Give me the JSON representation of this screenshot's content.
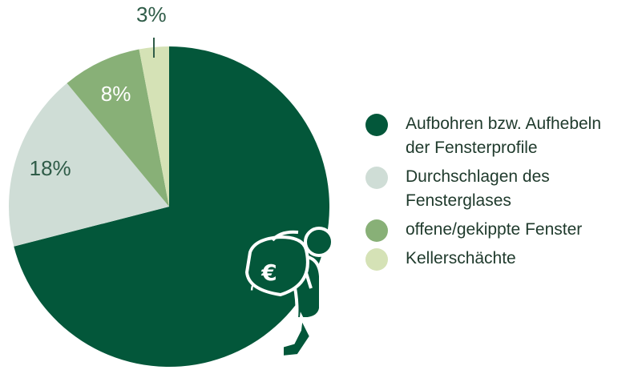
{
  "chart_data": {
    "type": "pie",
    "start_angle_deg": 0,
    "direction": "clockwise",
    "slices": [
      {
        "label": "Aufbohren bzw. Aufhebeln der Fensterprofile",
        "value": 71,
        "value_label": "71%",
        "color": "#03573a",
        "label_color": "#ffffff"
      },
      {
        "label": "Durchschlagen des Fensterglases",
        "value": 18,
        "value_label": "18%",
        "color": "#cfddd6",
        "label_color": "#2f5c48"
      },
      {
        "label": "offene/gekippte  Fenster",
        "value": 8,
        "value_label": "8%",
        "color": "#88b077",
        "label_color": "#ffffff"
      },
      {
        "label": "Kellerschächte",
        "value": 3,
        "value_label": "3%",
        "color": "#d5e2b6",
        "label_color": "#2f5c48"
      }
    ]
  },
  "legend": {
    "items": [
      {
        "label_line1": "Aufbohren bzw. Aufhebeln",
        "label_line2": "der Fensterprofile",
        "color": "#03573a"
      },
      {
        "label_line1": "Durchschlagen des",
        "label_line2": "Fensterglases",
        "color": "#cfddd6"
      },
      {
        "label_line1": "offene/gekippte  Fenster",
        "label_line2": "",
        "color": "#88b077"
      },
      {
        "label_line1": "Kellerschächte",
        "label_line2": "",
        "color": "#d5e2b6"
      }
    ]
  },
  "illustration": {
    "icon": "thief-with-money-bag-icon",
    "bag_symbol": "€",
    "color": "#03573a"
  }
}
